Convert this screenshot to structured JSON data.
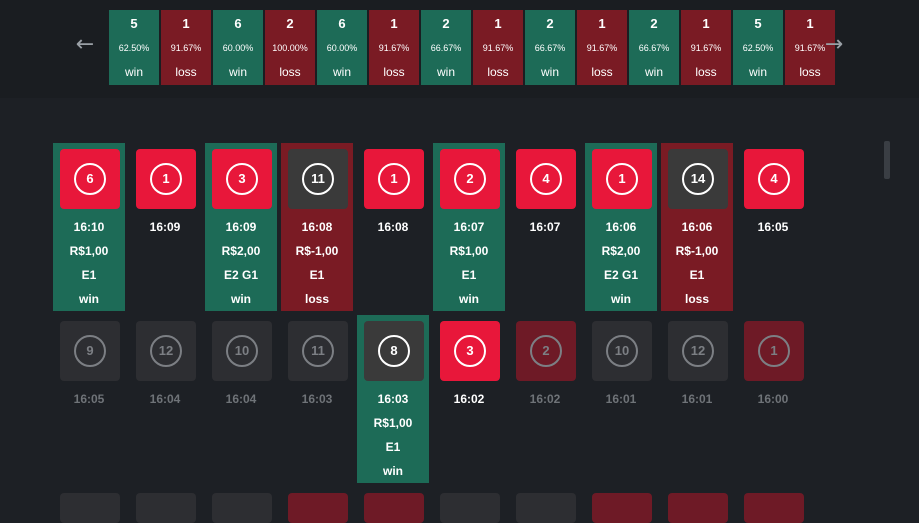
{
  "nav": {
    "prev_icon": "←",
    "next_icon": "→"
  },
  "strip": [
    {
      "n": "5",
      "pct": "62.50%",
      "res": "win"
    },
    {
      "n": "1",
      "pct": "91.67%",
      "res": "loss"
    },
    {
      "n": "6",
      "pct": "60.00%",
      "res": "win"
    },
    {
      "n": "2",
      "pct": "100.00%",
      "res": "loss"
    },
    {
      "n": "6",
      "pct": "60.00%",
      "res": "win"
    },
    {
      "n": "1",
      "pct": "91.67%",
      "res": "loss"
    },
    {
      "n": "2",
      "pct": "66.67%",
      "res": "win"
    },
    {
      "n": "1",
      "pct": "91.67%",
      "res": "loss"
    },
    {
      "n": "2",
      "pct": "66.67%",
      "res": "win"
    },
    {
      "n": "1",
      "pct": "91.67%",
      "res": "loss"
    },
    {
      "n": "2",
      "pct": "66.67%",
      "res": "win"
    },
    {
      "n": "1",
      "pct": "91.67%",
      "res": "loss"
    },
    {
      "n": "5",
      "pct": "62.50%",
      "res": "win"
    },
    {
      "n": "1",
      "pct": "91.67%",
      "res": "loss"
    }
  ],
  "row1": [
    {
      "num": "6",
      "time": "16:10",
      "val": "R$1,00",
      "lab": "E1",
      "res": "win"
    },
    {
      "num": "1",
      "time": "16:09"
    },
    {
      "num": "3",
      "time": "16:09",
      "val": "R$2,00",
      "lab": "E2 G1",
      "res": "win"
    },
    {
      "num": "11",
      "time": "16:08",
      "val": "R$-1,00",
      "lab": "E1",
      "res": "loss"
    },
    {
      "num": "1",
      "time": "16:08"
    },
    {
      "num": "2",
      "time": "16:07",
      "val": "R$1,00",
      "lab": "E1",
      "res": "win"
    },
    {
      "num": "4",
      "time": "16:07"
    },
    {
      "num": "1",
      "time": "16:06",
      "val": "R$2,00",
      "lab": "E2 G1",
      "res": "win"
    },
    {
      "num": "14",
      "time": "16:06",
      "val": "R$-1,00",
      "lab": "E1",
      "res": "loss"
    },
    {
      "num": "4",
      "time": "16:05"
    }
  ],
  "row2": [
    {
      "num": "9",
      "time": "16:05"
    },
    {
      "num": "12",
      "time": "16:04"
    },
    {
      "num": "10",
      "time": "16:04"
    },
    {
      "num": "11",
      "time": "16:03"
    },
    {
      "num": "8",
      "time": "16:03",
      "val": "R$1,00",
      "lab": "E1",
      "res": "win"
    },
    {
      "num": "3",
      "time": "16:02"
    },
    {
      "num": "2",
      "time": "16:02"
    },
    {
      "num": "10",
      "time": "16:01"
    },
    {
      "num": "12",
      "time": "16:01"
    },
    {
      "num": "1",
      "time": "16:00"
    }
  ]
}
